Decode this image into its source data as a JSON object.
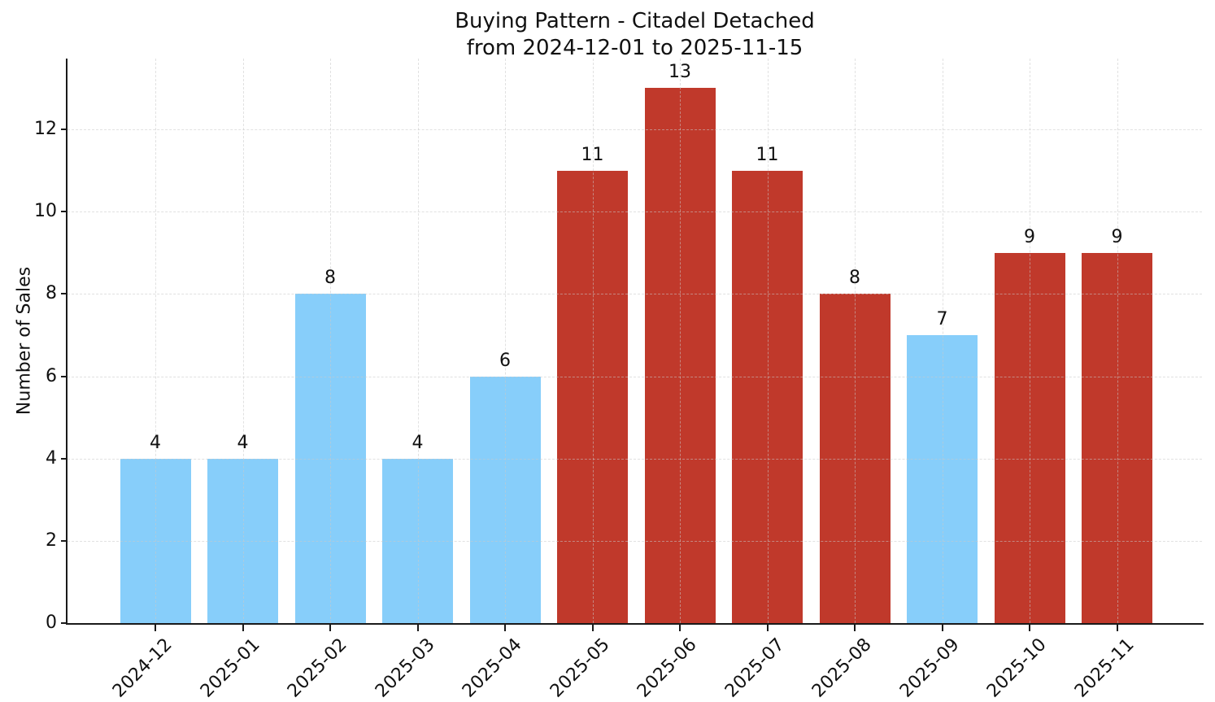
{
  "title": {
    "line1": "Buying Pattern - Citadel Detached",
    "line2": "from 2024-12-01 to 2025-11-15"
  },
  "chart_data": {
    "type": "bar",
    "title": "Buying Pattern - Citadel Detached\nfrom 2024-12-01 to 2025-11-15",
    "categories": [
      "2024-12",
      "2025-01",
      "2025-02",
      "2025-03",
      "2025-04",
      "2025-05",
      "2025-06",
      "2025-07",
      "2025-08",
      "2025-09",
      "2025-10",
      "2025-11"
    ],
    "values": [
      4,
      4,
      8,
      4,
      6,
      11,
      13,
      11,
      8,
      7,
      9,
      9
    ],
    "bar_colors": [
      "#87CEFA",
      "#87CEFA",
      "#87CEFA",
      "#87CEFA",
      "#87CEFA",
      "#C0392B",
      "#C0392B",
      "#C0392B",
      "#C0392B",
      "#87CEFA",
      "#C0392B",
      "#C0392B"
    ],
    "accent_colors": {
      "blue": "#87CEFA",
      "red": "#C0392B"
    },
    "xlabel": "",
    "ylabel": "Number of Sales",
    "yticks": [
      0,
      2,
      4,
      6,
      8,
      10,
      12
    ],
    "ylim": [
      0,
      13.72
    ],
    "value_labels": true,
    "grid": {
      "visible": true,
      "style": "dashed",
      "axes": "both"
    },
    "legend_position": "none"
  }
}
